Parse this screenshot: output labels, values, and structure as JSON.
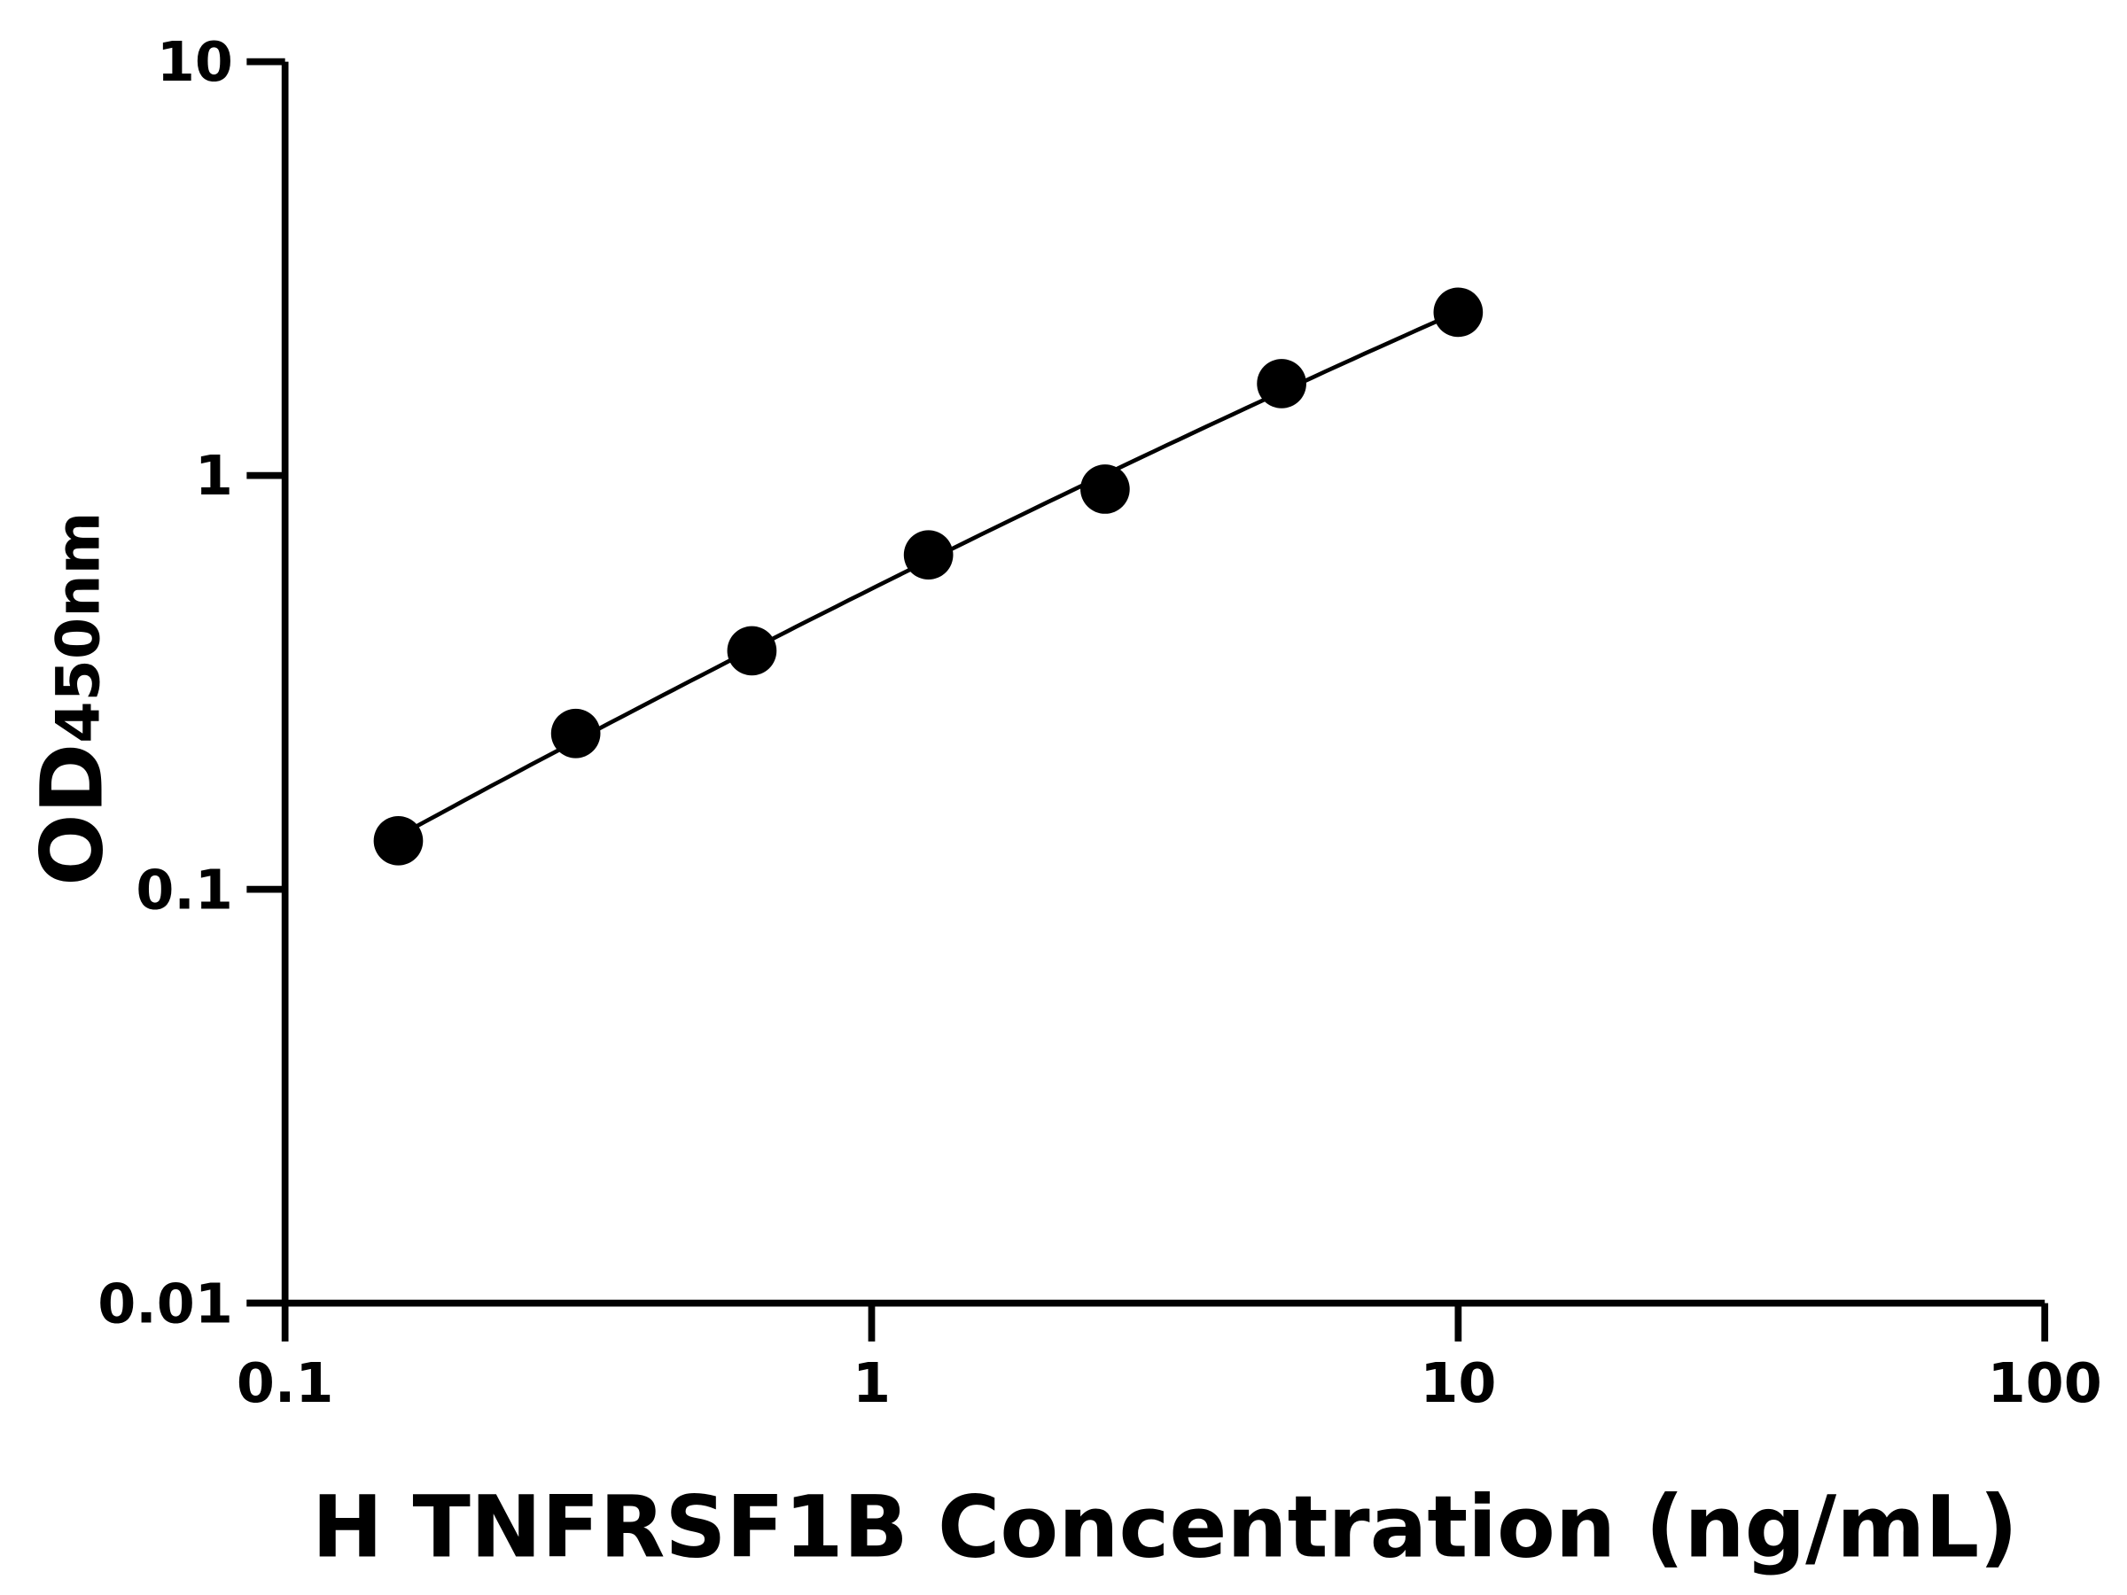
{
  "chart_data": {
    "type": "scatter",
    "title": "",
    "xlabel": "H TNFRSF1B Concentration (ng/mL)",
    "ylabel": "OD",
    "ylabel_subscript": "450nm",
    "x_scale": "log",
    "y_scale": "log",
    "xlim": [
      0.1,
      100
    ],
    "ylim": [
      0.01,
      10
    ],
    "x_ticks": [
      "0.1",
      "1",
      "10",
      "100"
    ],
    "y_ticks": [
      "0.01",
      "0.1",
      "1",
      "10"
    ],
    "grid": false,
    "fit_curve": true,
    "series": [
      {
        "x": [
          0.156,
          0.313,
          0.625,
          1.25,
          2.5,
          5,
          10
        ],
        "y": [
          0.131,
          0.238,
          0.377,
          0.643,
          0.927,
          1.667,
          2.48
        ]
      }
    ],
    "colors": {
      "marker": "#000000",
      "line": "#000000"
    }
  }
}
